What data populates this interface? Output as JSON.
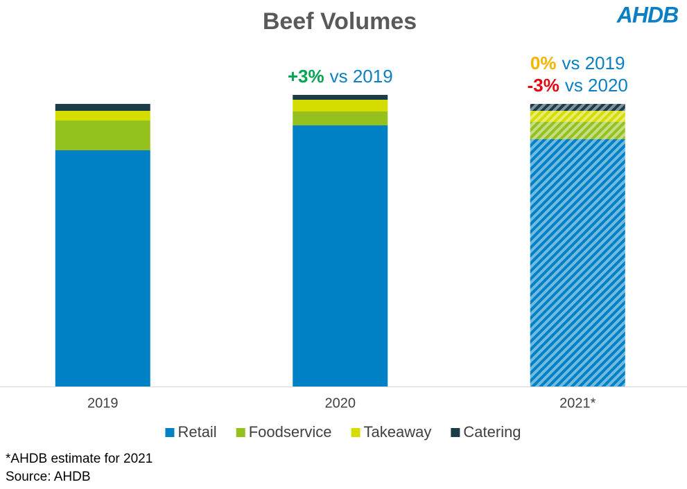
{
  "chart_data": {
    "type": "stacked_bar",
    "title": "Beef Volumes",
    "logo": "AHDB",
    "categories": [
      "2019",
      "2020",
      "2021*"
    ],
    "series": [
      {
        "name": "Retail",
        "color": "#0081c6",
        "values": [
          341,
          377,
          357
        ]
      },
      {
        "name": "Foodservice",
        "color": "#95c11f",
        "values": [
          43,
          20,
          25
        ]
      },
      {
        "name": "Takeaway",
        "color": "#d4dc00",
        "values": [
          14,
          17,
          16
        ]
      },
      {
        "name": "Catering",
        "color": "#1d3c4a",
        "values": [
          10,
          7,
          10
        ]
      }
    ],
    "hatched": [
      false,
      false,
      true
    ],
    "ylim": [
      0,
      430
    ],
    "annotations": [
      null,
      [
        [
          {
            "text": "+3%",
            "color": "#00a651",
            "bold": true
          },
          {
            "text": "vs 2019",
            "color": "#0a7fc4",
            "bold": false
          }
        ]
      ],
      [
        [
          {
            "text": "0%",
            "color": "#f5b400",
            "bold": true
          },
          {
            "text": "vs 2019",
            "color": "#0a7fc4",
            "bold": false
          }
        ],
        [
          {
            "text": "-3%",
            "color": "#e30613",
            "bold": true
          },
          {
            "text": "vs 2020",
            "color": "#0a7fc4",
            "bold": false
          }
        ]
      ]
    ],
    "notes": [
      "*AHDB estimate for 2021",
      "Source: AHDB"
    ]
  }
}
